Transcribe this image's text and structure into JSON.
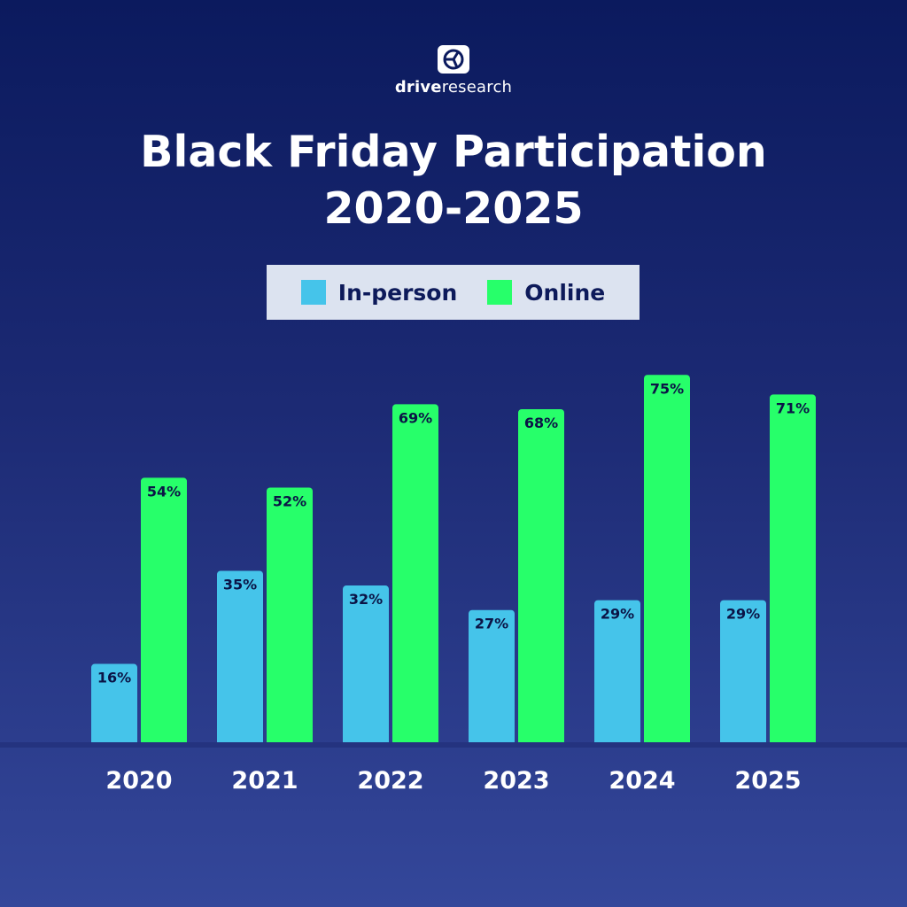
{
  "brand": {
    "name_bold": "drive",
    "name_regular": "research"
  },
  "colors": {
    "in_person": "#45c4ea",
    "online": "#27ff6a"
  },
  "chart_data": {
    "type": "bar",
    "title_lines": [
      "Black Friday Participation",
      "2020-2025"
    ],
    "categories": [
      "2020",
      "2021",
      "2022",
      "2023",
      "2024",
      "2025"
    ],
    "series": [
      {
        "name": "In-person",
        "values": [
          16,
          35,
          32,
          27,
          29,
          29
        ],
        "labels": [
          "16%",
          "35%",
          "32%",
          "27%",
          "29%",
          "29%"
        ]
      },
      {
        "name": "Online",
        "values": [
          54,
          52,
          69,
          68,
          75,
          71
        ],
        "labels": [
          "54%",
          "52%",
          "69%",
          "68%",
          "75%",
          "71%"
        ]
      }
    ],
    "ylim": [
      0,
      80
    ],
    "grid": false,
    "legend_position": "top-center"
  }
}
